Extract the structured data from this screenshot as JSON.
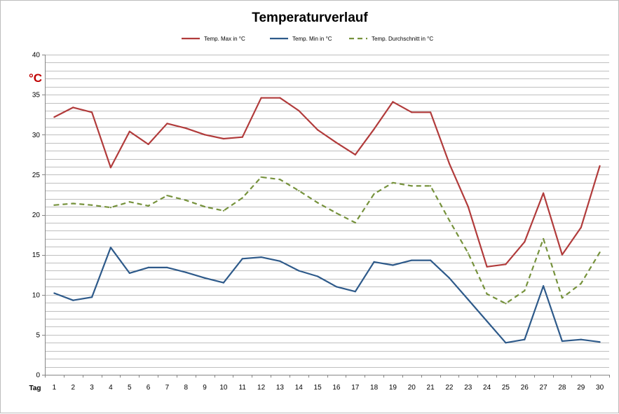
{
  "chart_data": {
    "type": "line",
    "title": "Temperaturverlauf",
    "unit_label": "°C",
    "xlabel": "Tag",
    "ylim": [
      0,
      40
    ],
    "y_major_ticks": [
      0,
      5,
      10,
      15,
      20,
      25,
      30,
      35,
      40
    ],
    "y_minor_step": 1,
    "grid": true,
    "legend_position": "top-center",
    "colors": {
      "max": "#b13b3b",
      "min": "#2e5a8a",
      "avg": "#76923c",
      "unit": "#c00000",
      "grid": "#bfbfbf",
      "axis": "#868686"
    },
    "x": [
      1,
      2,
      3,
      4,
      5,
      6,
      7,
      8,
      9,
      10,
      11,
      12,
      13,
      14,
      15,
      16,
      17,
      18,
      19,
      20,
      21,
      22,
      23,
      24,
      25,
      26,
      27,
      28,
      29,
      30
    ],
    "series": [
      {
        "key": "max",
        "name": "Temp. Max in °C",
        "dash": "solid",
        "values": [
          32.2,
          33.4,
          32.8,
          25.9,
          30.4,
          28.8,
          31.4,
          30.8,
          30.0,
          29.5,
          29.7,
          34.6,
          34.6,
          33.0,
          30.6,
          29.0,
          27.5,
          30.7,
          34.1,
          32.8,
          32.8,
          26.4,
          21.0,
          13.5,
          13.8,
          16.6,
          22.7,
          15.0,
          18.4,
          26.1
        ]
      },
      {
        "key": "min",
        "name": "Temp. Min in °C",
        "dash": "solid",
        "values": [
          10.2,
          9.3,
          9.7,
          15.9,
          12.7,
          13.4,
          13.4,
          12.8,
          12.1,
          11.5,
          14.5,
          14.7,
          14.2,
          13.0,
          12.3,
          11.0,
          10.4,
          14.1,
          13.7,
          14.3,
          14.3,
          12.1,
          9.4,
          6.7,
          4.0,
          4.4,
          11.1,
          4.2,
          4.4,
          4.1
        ]
      },
      {
        "key": "avg",
        "name": "Temp. Durchschnitt in °C",
        "dash": "dashed",
        "values": [
          21.2,
          21.4,
          21.2,
          20.9,
          21.6,
          21.1,
          22.4,
          21.8,
          21.0,
          20.5,
          22.1,
          24.7,
          24.4,
          23.0,
          21.5,
          20.2,
          19.0,
          22.6,
          24.0,
          23.6,
          23.6,
          19.3,
          15.2,
          10.1,
          8.9,
          10.5,
          17.0,
          9.6,
          11.4,
          15.3
        ]
      }
    ]
  }
}
